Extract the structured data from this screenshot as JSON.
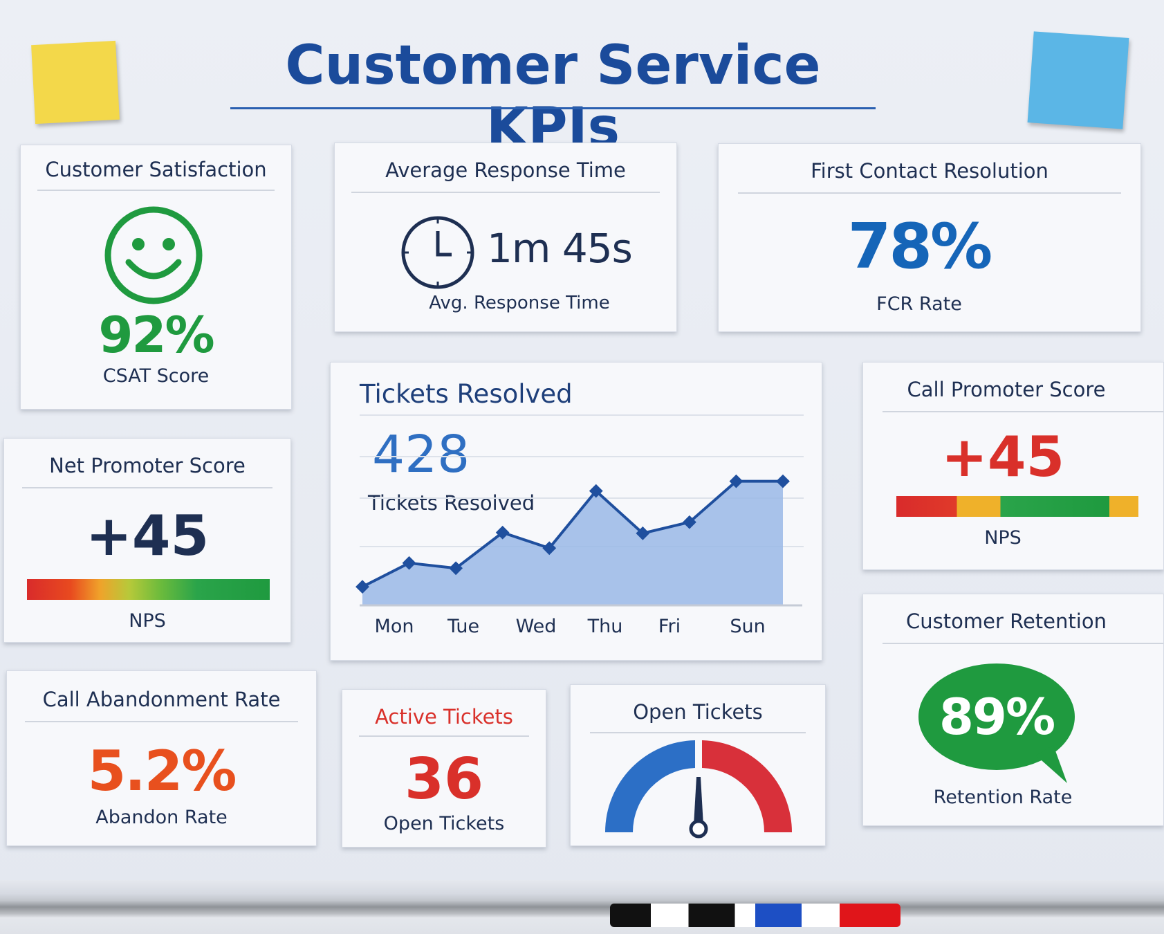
{
  "title": "Customer Service KPIs",
  "csat": {
    "title": "Customer Satisfaction",
    "value": "92%",
    "label": "CSAT Score",
    "icon": "smiley-icon",
    "color": "#1f9a3f"
  },
  "response": {
    "title": "Average Response Time",
    "value": "1m 45s",
    "label": "Avg. Response Time",
    "icon": "clock-icon"
  },
  "fcr": {
    "title": "First Contact Resolution",
    "value": "78%",
    "label": "FCR Rate",
    "color": "#1565b8"
  },
  "nps": {
    "title": "Net Promoter Score",
    "value": "+45",
    "label": "NPS"
  },
  "promoter": {
    "title": "Call Promoter Score",
    "value": "+45",
    "label": "NPS",
    "color": "#d9302a"
  },
  "retention": {
    "title": "Customer Retention",
    "value": "89%",
    "label": "Retention Rate",
    "color": "#1f9a3f"
  },
  "abandon": {
    "title": "Call Abandonment Rate",
    "value": "5.2%",
    "label": "Abandon Rate",
    "color": "#e8501e"
  },
  "active": {
    "title": "Active Tickets",
    "value": "36",
    "label": "Open Tickets",
    "color": "#d9302a"
  },
  "open": {
    "title": "Open Tickets",
    "icon": "gauge-icon"
  },
  "tickets": {
    "title": "Tickets Resolved",
    "value": "428",
    "label": "Tickets Resolved"
  },
  "chart_data": {
    "type": "area",
    "title": "Tickets Resolved",
    "tick_labels": [
      "Mon",
      "Tue",
      "Wed",
      "Thu",
      "Fri",
      "Sun"
    ],
    "values": [
      75,
      171,
      150,
      294,
      231,
      462,
      291,
      336,
      501,
      501
    ],
    "grid": true,
    "color": "#1f4f9e"
  }
}
